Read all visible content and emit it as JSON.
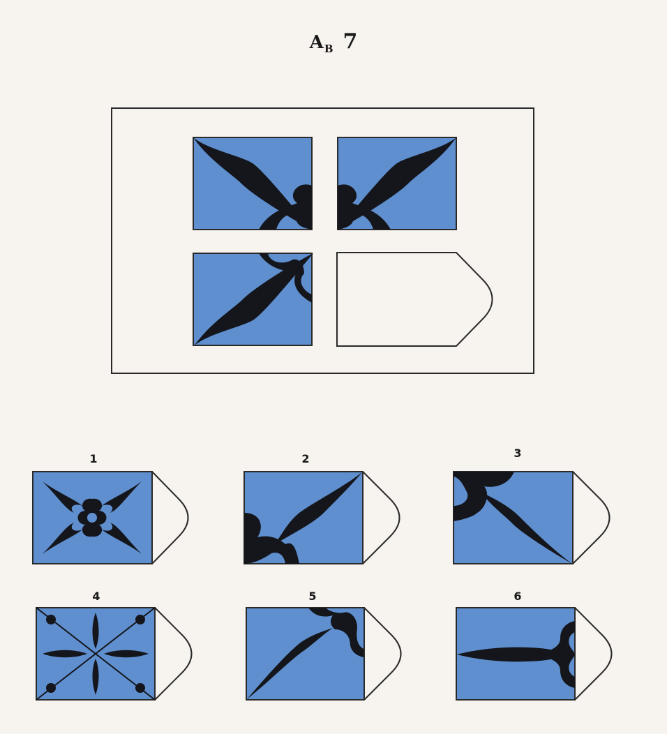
{
  "header": {
    "letter": "A",
    "subscript": "B",
    "number": "7"
  },
  "colors": {
    "tile_blue": "#5f8fcf",
    "shape_dark": "#14161c",
    "outline": "#2a2a2a",
    "paper": "#f7f3ee"
  },
  "options": [
    {
      "label": "1",
      "icon": "four-leaf-cross-icon"
    },
    {
      "label": "2",
      "icon": "diagonal-leaf-bottom-left-icon"
    },
    {
      "label": "3",
      "icon": "diagonal-leaf-top-left-icon"
    },
    {
      "label": "4",
      "icon": "four-petal-x-dots-icon"
    },
    {
      "label": "5",
      "icon": "diagonal-leaf-top-right-icon"
    },
    {
      "label": "6",
      "icon": "horizontal-leaf-right-icon"
    }
  ]
}
